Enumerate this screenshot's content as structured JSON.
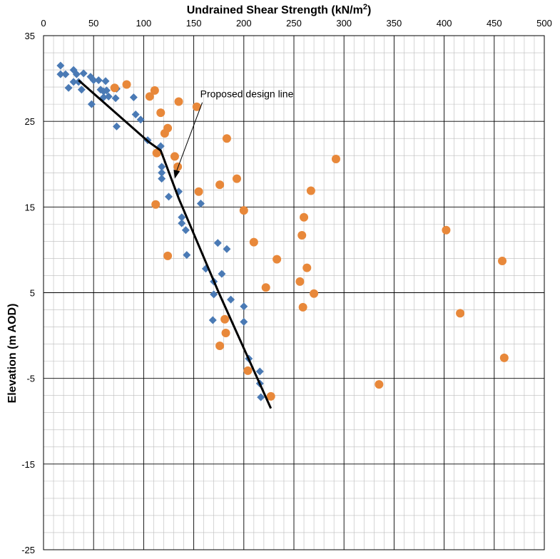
{
  "chart_data": {
    "type": "scatter",
    "title": "",
    "xlabel": "Undrained Shear Strength (kN/m",
    "xlabel_sup": "2",
    "xlabel_end": ")",
    "ylabel": "Elevation (m AOD)",
    "xlim": [
      0,
      500
    ],
    "ylim": [
      -25,
      35
    ],
    "x_ticks": [
      0,
      50,
      100,
      150,
      200,
      250,
      300,
      350,
      400,
      450,
      500
    ],
    "x_tick_labels": [
      "0",
      "50",
      "100",
      "150",
      "200",
      "250",
      "300",
      "350",
      "400",
      "450",
      "500"
    ],
    "y_ticks": [
      35,
      25,
      15,
      5,
      -5,
      -15,
      -25
    ],
    "y_tick_labels": [
      "35",
      "25",
      "15",
      "5",
      "-5",
      "-15",
      "-25"
    ],
    "x_axis_position": "top",
    "grid": true,
    "legend": "none",
    "series": [
      {
        "marker": "diamond",
        "color": "#4a7ab5",
        "points": [
          [
            17,
            31.5
          ],
          [
            17,
            30.5
          ],
          [
            22,
            30.5
          ],
          [
            25,
            28.9
          ],
          [
            30,
            31
          ],
          [
            33,
            30.5
          ],
          [
            30,
            29.6
          ],
          [
            35,
            29.6
          ],
          [
            40,
            30.6
          ],
          [
            38,
            28.7
          ],
          [
            47,
            30.2
          ],
          [
            50,
            29.8
          ],
          [
            48,
            27
          ],
          [
            55,
            29.8
          ],
          [
            57,
            28.7
          ],
          [
            60,
            28.5
          ],
          [
            62,
            29.7
          ],
          [
            63,
            28.6
          ],
          [
            60,
            27.8
          ],
          [
            65,
            27.9
          ],
          [
            72,
            27.7
          ],
          [
            73,
            28.8
          ],
          [
            73,
            24.4
          ],
          [
            90,
            27.8
          ],
          [
            92,
            25.8
          ],
          [
            97,
            25.2
          ],
          [
            104,
            22.8
          ],
          [
            117,
            22.1
          ],
          [
            118,
            19.7
          ],
          [
            118,
            19
          ],
          [
            118,
            18.3
          ],
          [
            125,
            16.2
          ],
          [
            135,
            16.8
          ],
          [
            138,
            13.8
          ],
          [
            138,
            13.1
          ],
          [
            142,
            12.3
          ],
          [
            143,
            9.4
          ],
          [
            157,
            15.4
          ],
          [
            162,
            7.8
          ],
          [
            170,
            6.3
          ],
          [
            170,
            4.8
          ],
          [
            174,
            10.8
          ],
          [
            178,
            7.2
          ],
          [
            183,
            10.1
          ],
          [
            187,
            4.2
          ],
          [
            169,
            1.8
          ],
          [
            200,
            3.4
          ],
          [
            200,
            1.6
          ],
          [
            205,
            -2.7
          ],
          [
            216,
            -4.2
          ],
          [
            216,
            -5.6
          ],
          [
            217,
            -7.2
          ]
        ]
      },
      {
        "marker": "circle",
        "color": "#e8883a",
        "points": [
          [
            71,
            28.9
          ],
          [
            83,
            29.3
          ],
          [
            106,
            27.9
          ],
          [
            111,
            28.6
          ],
          [
            113,
            21.3
          ],
          [
            117,
            26
          ],
          [
            121,
            23.6
          ],
          [
            124,
            24.2
          ],
          [
            131,
            20.9
          ],
          [
            134,
            19.7
          ],
          [
            135,
            27.3
          ],
          [
            153,
            26.7
          ],
          [
            112,
            15.3
          ],
          [
            124,
            9.3
          ],
          [
            155,
            16.8
          ],
          [
            176,
            17.6
          ],
          [
            183,
            23
          ],
          [
            193,
            18.3
          ],
          [
            200,
            14.6
          ],
          [
            210,
            10.9
          ],
          [
            222,
            5.6
          ],
          [
            233,
            8.9
          ],
          [
            256,
            6.3
          ],
          [
            259,
            3.3
          ],
          [
            258,
            11.7
          ],
          [
            260,
            13.8
          ],
          [
            263,
            7.9
          ],
          [
            267,
            16.9
          ],
          [
            270,
            4.9
          ],
          [
            292,
            20.6
          ],
          [
            181,
            1.9
          ],
          [
            182,
            0.3
          ],
          [
            176,
            -1.2
          ],
          [
            204,
            -4.1
          ],
          [
            227,
            -7.1
          ],
          [
            335,
            -5.7
          ],
          [
            402,
            12.3
          ],
          [
            416,
            2.6
          ],
          [
            458,
            8.7
          ],
          [
            460,
            -2.6
          ]
        ]
      }
    ],
    "design_line": {
      "name": "Proposed design line",
      "points": [
        [
          35,
          29.8
        ],
        [
          105,
          22.6
        ],
        [
          117,
          21.6
        ],
        [
          135,
          16
        ],
        [
          175,
          5
        ],
        [
          227,
          -8.5
        ]
      ]
    },
    "annotations": [
      {
        "text": "Proposed design line",
        "text_anchor": [
          155,
          28.2
        ],
        "arrow_from": [
          150,
          27.2
        ],
        "arrow_to": [
          131,
          18.3
        ]
      }
    ]
  }
}
